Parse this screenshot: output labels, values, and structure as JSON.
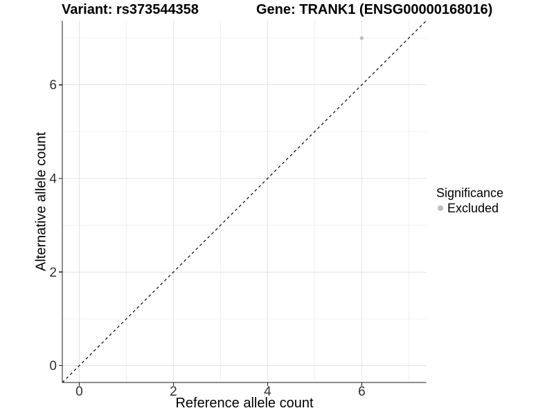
{
  "header": {
    "variant_title": "Variant: rs373544358",
    "gene_title": "Gene: TRANK1 (ENSG00000168016)"
  },
  "chart_data": {
    "type": "scatter",
    "xlabel": "Reference allele count",
    "ylabel": "Alternative allele count",
    "xlim": [
      -0.36,
      7.37
    ],
    "ylim": [
      -0.36,
      7.37
    ],
    "xticks": [
      0,
      2,
      4,
      6
    ],
    "yticks": [
      0,
      2,
      4,
      6
    ],
    "minor_xticks": [
      1,
      3,
      5,
      7
    ],
    "minor_yticks": [
      1,
      3,
      5,
      7
    ],
    "grid": "on",
    "points": [
      {
        "x": 6,
        "y": 7,
        "series": "Excluded",
        "color": "#bdbdbd"
      }
    ],
    "reference_line": {
      "type": "identity",
      "slope": 1,
      "intercept": 0,
      "style": "dashed",
      "color": "#000000"
    },
    "legend": {
      "title": "Significance",
      "position": "right",
      "items": [
        {
          "label": "Excluded",
          "color": "#bdbdbd",
          "marker": "circle"
        }
      ]
    }
  },
  "colors": {
    "background": "#ffffff",
    "grid_major": "#e3e3e3",
    "grid_minor": "#f1f1f1",
    "axis": "#1a1a1a",
    "tick_label": "#303030",
    "point": "#bdbdbd"
  }
}
